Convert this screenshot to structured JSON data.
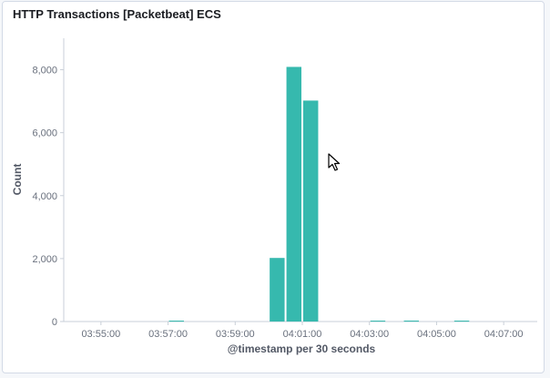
{
  "panel": {
    "title": "HTTP Transactions [Packetbeat] ECS"
  },
  "colors": {
    "bar": "#36b9ae",
    "axis": "#c9cfd8",
    "text": "#69707d"
  },
  "chart_data": {
    "type": "bar",
    "title": "HTTP Transactions [Packetbeat] ECS",
    "xlabel": "@timestamp per 30 seconds",
    "ylabel": "Count",
    "ylim": [
      0,
      9000
    ],
    "yticks": [
      0,
      2000,
      4000,
      6000,
      8000
    ],
    "ytick_labels": [
      "0",
      "2,000",
      "4,000",
      "6,000",
      "8,000"
    ],
    "xlim": [
      "03:54:00",
      "04:08:00"
    ],
    "xticks": [
      "03:55:00",
      "03:57:00",
      "03:59:00",
      "04:01:00",
      "04:03:00",
      "04:05:00",
      "04:07:00"
    ],
    "bar_interval_seconds": 30,
    "x": [
      "03:57:00",
      "04:00:00",
      "04:00:30",
      "04:01:00",
      "04:03:00",
      "04:04:00",
      "04:05:30"
    ],
    "values": [
      5,
      2020,
      8090,
      7020,
      5,
      30,
      5
    ],
    "grid": false,
    "legend": "none"
  }
}
